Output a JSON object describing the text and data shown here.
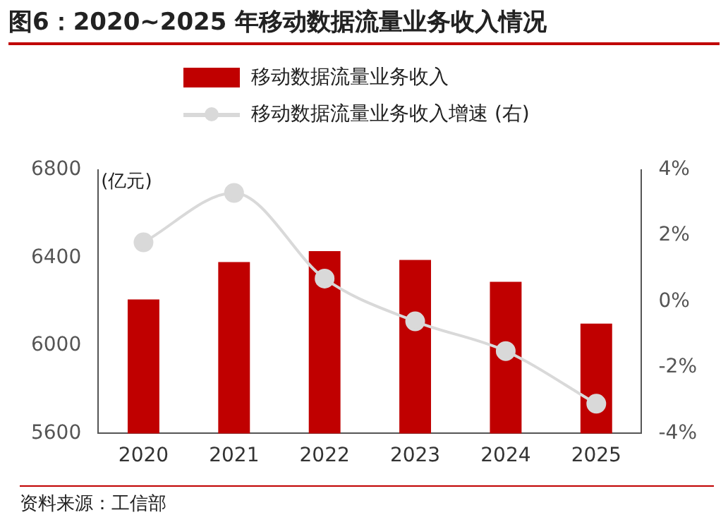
{
  "chart_data": {
    "type": "bar",
    "title": "图6：2020~2025 年移动数据流量业务收入情况",
    "ylabel": "(亿元)",
    "categories": [
      "2020",
      "2021",
      "2022",
      "2023",
      "2024",
      "2025"
    ],
    "series": [
      {
        "name": "移动数据流量业务收入",
        "color": "#c00000",
        "values": [
          6210,
          6380,
          6430,
          6390,
          6290,
          6100
        ]
      },
      {
        "name": "移动数据流量业务收入增速 (右)",
        "type": "line",
        "axis": "y2",
        "color": "#d9d9d9",
        "marker": "circle",
        "values": [
          1.8,
          3.3,
          0.7,
          -0.6,
          -1.5,
          -3.1
        ]
      }
    ],
    "ylim": [
      5600,
      6800
    ],
    "yticks": [
      5600,
      6000,
      6400,
      6800
    ],
    "y2lim": [
      -4,
      4
    ],
    "y2ticks": [
      {
        "value": -4,
        "label": "-4%"
      },
      {
        "value": -2,
        "label": "-2%"
      },
      {
        "value": 0,
        "label": "0%"
      },
      {
        "value": 2,
        "label": "2%"
      },
      {
        "value": 4,
        "label": "4%"
      }
    ],
    "grid": false,
    "legend": "top",
    "annotations": [
      "资料来源：工信部"
    ]
  }
}
